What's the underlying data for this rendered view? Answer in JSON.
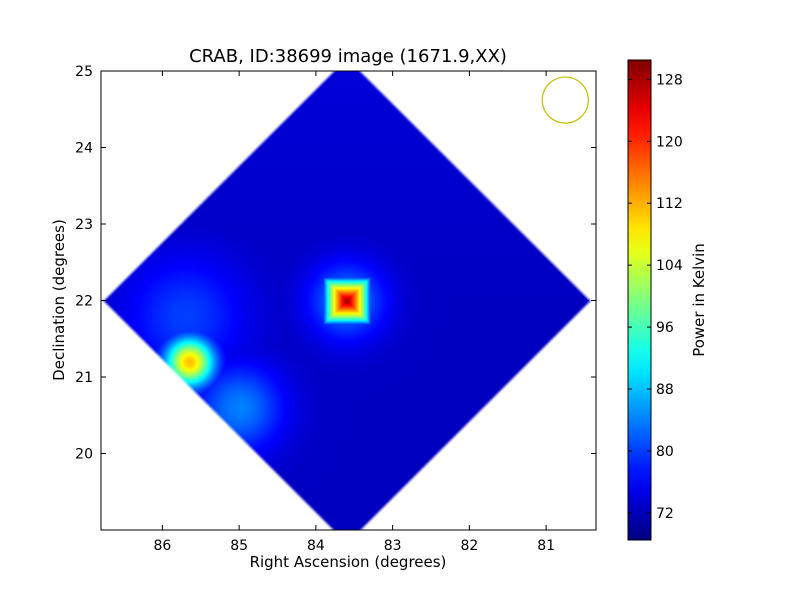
{
  "chart_data": {
    "type": "heatmap",
    "title": "CRAB, ID:38699 image (1671.9,XX)",
    "xlabel": "Right Ascension (degrees)",
    "ylabel": "Declination (degrees)",
    "colorbar_label": "Power in Kelvin",
    "xlim": [
      86.8,
      80.35
    ],
    "ylim": [
      19.0,
      25.0
    ],
    "x_ticks": [
      86,
      85,
      84,
      83,
      82,
      81
    ],
    "y_ticks": [
      20,
      21,
      22,
      23,
      24,
      25
    ],
    "x_tick_labels": [
      "86",
      "85",
      "84",
      "83",
      "82",
      "81"
    ],
    "y_tick_labels": [
      "20",
      "21",
      "22",
      "23",
      "24",
      "25"
    ],
    "colorbar_range": [
      68.5,
      130.5
    ],
    "colorbar_ticks": [
      72,
      80,
      88,
      96,
      104,
      112,
      120,
      128
    ],
    "colorbar_tick_labels": [
      "72",
      "80",
      "88",
      "96",
      "104",
      "112",
      "120",
      "128"
    ],
    "colormap": "jet",
    "coverage_center": [
      83.6,
      22.0
    ],
    "coverage_half_extent": 3.2,
    "background_level": 72.5,
    "sources": [
      {
        "ra": 83.6,
        "dec": 22.0,
        "peak": 130,
        "shape": "box",
        "half_width": 0.32
      },
      {
        "ra": 85.65,
        "dec": 21.2,
        "peak": 111,
        "shape": "gaussian",
        "sigma": 0.22
      },
      {
        "ra": 85.7,
        "dec": 21.8,
        "peak": 80,
        "shape": "gaussian",
        "sigma": 0.55
      },
      {
        "ra": 85.0,
        "dec": 20.6,
        "peak": 84,
        "shape": "gaussian",
        "sigma": 0.4
      }
    ],
    "beam_marker": {
      "ra": 80.75,
      "dec": 24.62,
      "radius_deg": 0.3,
      "color": "#bfbf00"
    }
  }
}
